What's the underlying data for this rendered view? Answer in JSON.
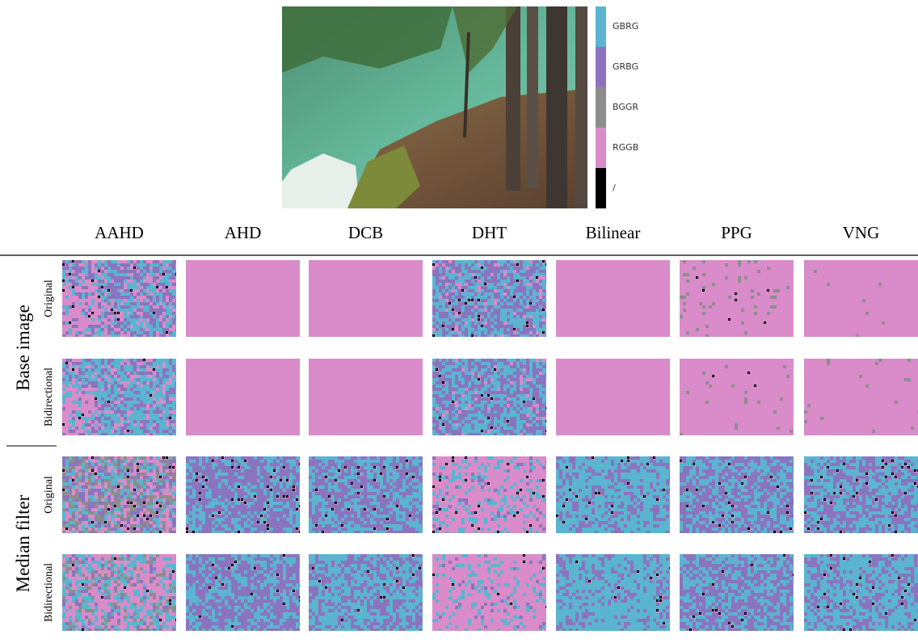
{
  "figure": {
    "legend": [
      {
        "label": "GBRG",
        "color": "#5bb4d0"
      },
      {
        "label": "GRBG",
        "color": "#8b74bf"
      },
      {
        "label": "BGGR",
        "color": "#8d8d8d"
      },
      {
        "label": "RGGB",
        "color": "#d98cc9"
      },
      {
        "label": "/",
        "color": "#000000"
      }
    ],
    "columns": [
      "AAHD",
      "AHD",
      "DCB",
      "DHT",
      "Bilinear",
      "PPG",
      "VNG"
    ],
    "groups": [
      {
        "label": "Base image",
        "rows": [
          "Original",
          "Bidirectional"
        ]
      },
      {
        "label": "Median filter",
        "rows": [
          "Original",
          "Bidirectional"
        ]
      }
    ]
  }
}
